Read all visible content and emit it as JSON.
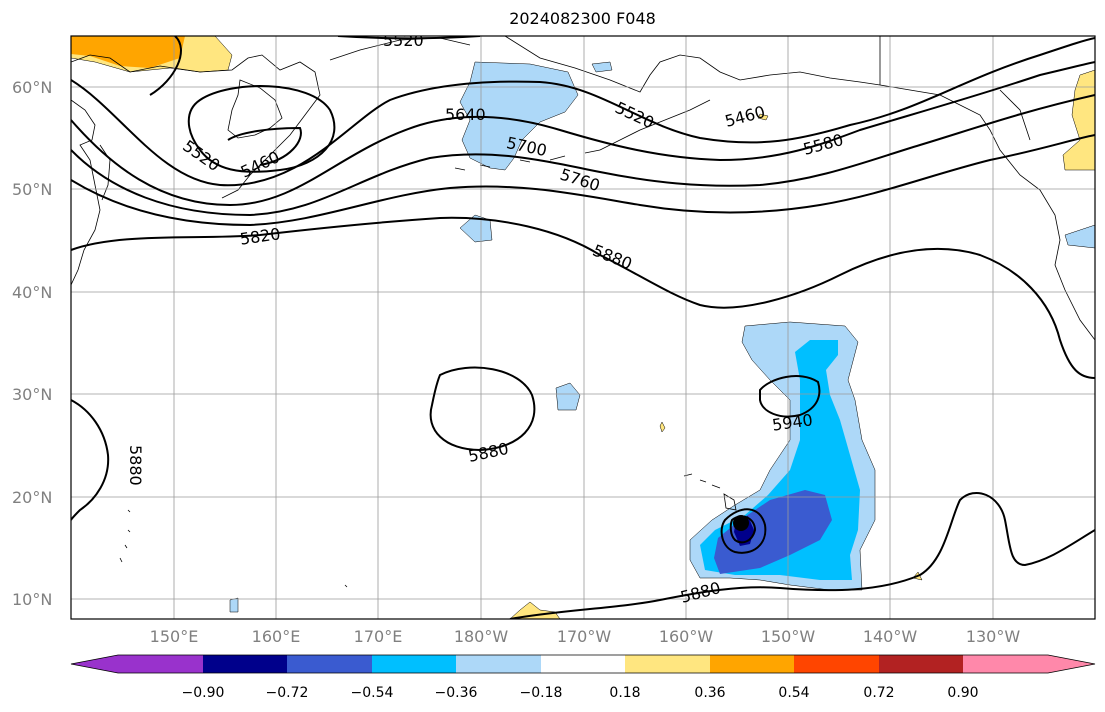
{
  "title": "2024082300 F048",
  "map": {
    "lat_ticks": [
      "60°N",
      "50°N",
      "40°N",
      "30°N",
      "20°N",
      "10°N"
    ],
    "lon_ticks": [
      "150°E",
      "160°E",
      "170°E",
      "180°W",
      "170°W",
      "160°W",
      "150°W",
      "140°W",
      "130°W"
    ],
    "contour_labels": [
      "5520",
      "5520",
      "5460",
      "5640",
      "5520",
      "5460",
      "5580",
      "5700",
      "5760",
      "5820",
      "5880",
      "5880",
      "5940",
      "5880",
      "5880"
    ],
    "grid": true,
    "coastlines": true,
    "marker": "black dot"
  },
  "colorbar": {
    "ticks": [
      "−0.90",
      "−0.72",
      "−0.54",
      "−0.36",
      "−0.18",
      "0.18",
      "0.36",
      "0.54",
      "0.72",
      "0.90"
    ],
    "colors": [
      "#9932cc",
      "#00008b",
      "#3a5bd0",
      "#00bfff",
      "#add8f8",
      "#ffffff",
      "#ffe680",
      "#ffa500",
      "#ff4500",
      "#b22222",
      "#ff88aa"
    ]
  }
}
